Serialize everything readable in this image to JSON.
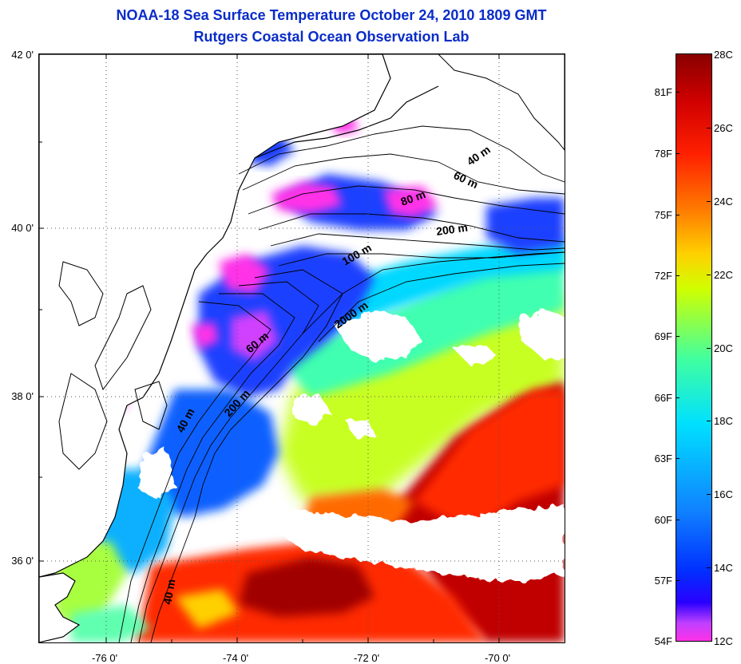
{
  "title": {
    "line1": "NOAA-18 Sea Surface Temperature October 24, 2010 1809 GMT",
    "line2": "Rutgers Coastal Ocean Observation Lab"
  },
  "axes": {
    "lat_labels": [
      "42 0'",
      "40 0'",
      "38 0'",
      "36 0'"
    ],
    "lon_labels": [
      "-76 0'",
      "-74 0'",
      "-72 0'",
      "-70 0'"
    ]
  },
  "contours": {
    "labels": [
      "40 m",
      "60 m",
      "80 m",
      "200 m",
      "100 m",
      "2000 m",
      "60 m",
      "200 m",
      "40 m",
      "40 m"
    ]
  },
  "colorbar": {
    "fahrenheit": [
      "81F",
      "78F",
      "75F",
      "72F",
      "69F",
      "66F",
      "63F",
      "60F",
      "57F",
      "54F"
    ],
    "celsius": [
      "28C",
      "26C",
      "24C",
      "22C",
      "20C",
      "18C",
      "16C",
      "14C",
      "12C"
    ],
    "colors": {
      "min": "#ff30e8",
      "low": "#0030ff",
      "mid_low": "#00e0ff",
      "mid": "#40ffa0",
      "mid_high": "#d0ff00",
      "high": "#ff2000",
      "max": "#8a0000"
    }
  },
  "data_colors": {
    "land": "#ffffff",
    "cloud": "#ffffff",
    "coast_line": "#000000"
  }
}
